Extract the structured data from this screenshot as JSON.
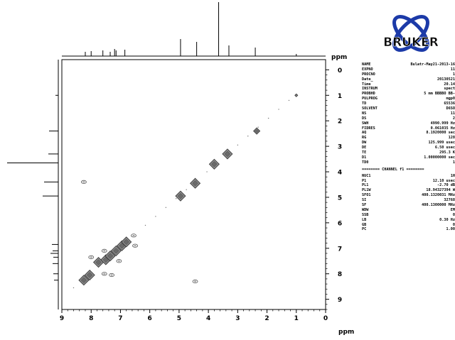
{
  "chart_data": {
    "type": "scatter",
    "title": "",
    "xlabel": "ppm",
    "ylabel": "ppm",
    "xlim": [
      9.0,
      0.0
    ],
    "ylim": [
      -0.4,
      9.4
    ],
    "x_ticks": [
      "9",
      "8",
      "7",
      "6",
      "5",
      "4",
      "3",
      "2",
      "1",
      "0"
    ],
    "x_tick_values": [
      9,
      8,
      7,
      6,
      5,
      4,
      3,
      2,
      1,
      0
    ],
    "y_ticks": [
      "0",
      "1",
      "2",
      "3",
      "4",
      "5",
      "6",
      "7",
      "8",
      "9"
    ],
    "y_tick_values": [
      0,
      1,
      2,
      3,
      4,
      5,
      6,
      7,
      8,
      9
    ],
    "grid": false,
    "diagonal_peaks": [
      {
        "x": 8.25,
        "y": 8.25,
        "size": "large"
      },
      {
        "x": 8.05,
        "y": 8.05,
        "size": "large"
      },
      {
        "x": 7.75,
        "y": 7.55,
        "size": "large"
      },
      {
        "x": 7.5,
        "y": 7.45,
        "size": "large"
      },
      {
        "x": 7.35,
        "y": 7.3,
        "size": "large"
      },
      {
        "x": 7.15,
        "y": 7.1,
        "size": "large"
      },
      {
        "x": 6.95,
        "y": 6.9,
        "size": "large"
      },
      {
        "x": 6.8,
        "y": 6.75,
        "size": "large"
      },
      {
        "x": 4.95,
        "y": 4.95,
        "size": "large"
      },
      {
        "x": 4.45,
        "y": 4.45,
        "size": "large"
      },
      {
        "x": 3.8,
        "y": 3.7,
        "size": "large"
      },
      {
        "x": 3.35,
        "y": 3.3,
        "size": "large"
      },
      {
        "x": 2.35,
        "y": 2.4,
        "size": "medium"
      },
      {
        "x": 1.0,
        "y": 1.0,
        "size": "small"
      }
    ],
    "cross_peaks": [
      {
        "x": 8.25,
        "y": 4.4
      },
      {
        "x": 4.45,
        "y": 8.3
      },
      {
        "x": 8.0,
        "y": 7.35
      },
      {
        "x": 7.55,
        "y": 8.0
      },
      {
        "x": 7.3,
        "y": 8.05
      },
      {
        "x": 7.55,
        "y": 7.1
      },
      {
        "x": 7.05,
        "y": 7.5
      },
      {
        "x": 6.5,
        "y": 6.9
      },
      {
        "x": 6.55,
        "y": 6.5
      }
    ],
    "top_projection_peaks": [
      {
        "x": 8.2,
        "h": 6
      },
      {
        "x": 8.0,
        "h": 7
      },
      {
        "x": 7.6,
        "h": 8
      },
      {
        "x": 7.35,
        "h": 6
      },
      {
        "x": 7.2,
        "h": 10
      },
      {
        "x": 7.15,
        "h": 8
      },
      {
        "x": 6.85,
        "h": 9
      },
      {
        "x": 4.95,
        "h": 24
      },
      {
        "x": 4.4,
        "h": 20
      },
      {
        "x": 3.65,
        "h": 76
      },
      {
        "x": 3.3,
        "h": 15
      },
      {
        "x": 2.4,
        "h": 12
      },
      {
        "x": 1.0,
        "h": 3
      }
    ],
    "left_projection_peaks": [
      {
        "y": 1.0,
        "h": 4
      },
      {
        "y": 2.4,
        "h": 13
      },
      {
        "y": 3.3,
        "h": 14
      },
      {
        "y": 3.65,
        "h": 72
      },
      {
        "y": 4.4,
        "h": 20
      },
      {
        "y": 4.95,
        "h": 22
      },
      {
        "y": 6.85,
        "h": 9
      },
      {
        "y": 7.1,
        "h": 8
      },
      {
        "y": 7.2,
        "h": 11
      },
      {
        "y": 7.35,
        "h": 7
      },
      {
        "y": 7.6,
        "h": 8
      },
      {
        "y": 8.0,
        "h": 7
      },
      {
        "y": 8.25,
        "h": 6
      }
    ]
  },
  "logo": {
    "text": "BRUKER"
  },
  "params": [
    [
      "NAME",
      "Bulatr-May21-2013-16"
    ],
    [
      "EXPNO",
      "11"
    ],
    [
      "PROCNO",
      "1"
    ],
    [
      "Date_",
      "20130521"
    ],
    [
      "Time",
      "20.14"
    ],
    [
      "INSTRUM",
      "spect"
    ],
    [
      "PROBHD",
      "5 mm BBBBO BB-"
    ],
    [
      "PULPROG",
      "mgp0"
    ],
    [
      "TD",
      "65536"
    ],
    [
      "SOLVENT",
      "D6SO"
    ],
    [
      "NS",
      "11"
    ],
    [
      "DS",
      "2"
    ],
    [
      "SWH",
      "4990.999 Hz"
    ],
    [
      "FIDRES",
      "0.061035 Hz"
    ],
    [
      "AQ",
      "8.1920000 sec"
    ],
    [
      "RG",
      "128"
    ],
    [
      "DW",
      "125.999 usec"
    ],
    [
      "DE",
      "6.50 usec"
    ],
    [
      "TE",
      "295.3 K"
    ],
    [
      "D1",
      "1.00000000 sec"
    ],
    [
      "TD0",
      "1"
    ]
  ],
  "channel_label": "======== CHANNEL f1 ========",
  "channel_params": [
    [
      "NUC1",
      "1H"
    ],
    [
      "P1",
      "12.10 usec"
    ],
    [
      "PL1",
      "-2.70 dB"
    ],
    [
      "PL1W",
      "18.94327394 W"
    ],
    [
      "SFO1",
      "400.1320031 MHz"
    ],
    [
      "SI",
      "32768"
    ],
    [
      "SF",
      "400.1300000 MHz"
    ],
    [
      "WDW",
      "EM"
    ],
    [
      "SSB",
      "0"
    ],
    [
      "LB",
      "0.30 Hz"
    ],
    [
      "GB",
      "0"
    ],
    [
      "PC",
      "1.00"
    ]
  ]
}
